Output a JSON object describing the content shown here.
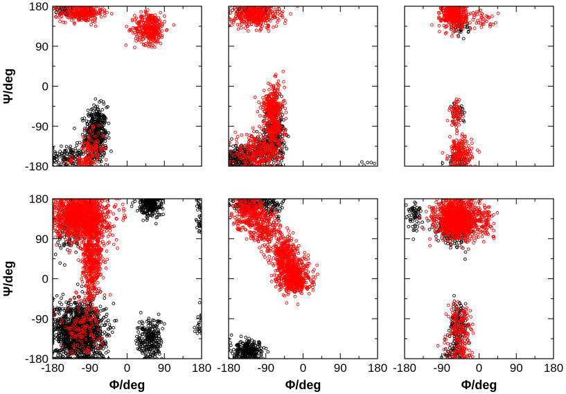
{
  "figure": {
    "xlabel": "Φ/deg",
    "ylabel": "Ψ/deg",
    "tick_labels": [
      "-180",
      "-90",
      "0",
      "90",
      "180"
    ]
  },
  "colors": {
    "series_a": "#000000",
    "series_b": "#ff0000",
    "axes": "#000000"
  },
  "chart_data": [
    {
      "type": "scatter",
      "panel": "top-left",
      "xlim": [
        -180,
        180
      ],
      "ylim": [
        -180,
        180
      ],
      "xticks": [
        -180,
        -90,
        0,
        90,
        180
      ],
      "yticks": [
        -180,
        -90,
        0,
        90,
        180
      ],
      "show_x_ticklabels": false,
      "show_y_ticklabels": true,
      "xlabel": "",
      "ylabel": "Ψ/deg",
      "series": [
        {
          "color": "#000000",
          "clusters": [
            {
              "cx": -150,
              "cy": 172,
              "sx": 15,
              "sy": 7,
              "n": 50
            },
            {
              "cx": -75,
              "cy": -110,
              "sx": 13,
              "sy": 32,
              "n": 450
            },
            {
              "cx": -150,
              "cy": -160,
              "sx": 18,
              "sy": 12,
              "n": 90
            },
            {
              "cx": -115,
              "cy": -150,
              "sx": 15,
              "sy": 15,
              "n": 40
            }
          ]
        },
        {
          "color": "#ff0000",
          "clusters": [
            {
              "cx": -110,
              "cy": 165,
              "sx": 25,
              "sy": 10,
              "n": 300
            },
            {
              "cx": 55,
              "cy": 130,
              "sx": 18,
              "sy": 18,
              "n": 350
            },
            {
              "cx": -85,
              "cy": -140,
              "sx": 15,
              "sy": 20,
              "n": 100
            },
            {
              "cx": -110,
              "cy": -170,
              "sx": 20,
              "sy": 6,
              "n": 50
            }
          ]
        }
      ]
    },
    {
      "type": "scatter",
      "panel": "top-middle",
      "xlim": [
        -180,
        180
      ],
      "ylim": [
        -180,
        180
      ],
      "xticks": [
        -180,
        -90,
        0,
        90,
        180
      ],
      "yticks": [
        -180,
        -90,
        0,
        90,
        180
      ],
      "show_x_ticklabels": false,
      "show_y_ticklabels": false,
      "xlabel": "",
      "ylabel": "",
      "series": [
        {
          "color": "#000000",
          "clusters": [
            {
              "cx": -120,
              "cy": 172,
              "sx": 25,
              "sy": 6,
              "n": 60
            },
            {
              "cx": -70,
              "cy": -110,
              "sx": 12,
              "sy": 35,
              "n": 300
            },
            {
              "cx": -150,
              "cy": -160,
              "sx": 20,
              "sy": 15,
              "n": 250
            },
            {
              "cx": -105,
              "cy": -145,
              "sx": 15,
              "sy": 18,
              "n": 80
            },
            {
              "cx": 150,
              "cy": -170,
              "sx": 15,
              "sy": 5,
              "n": 5
            }
          ]
        },
        {
          "color": "#ff0000",
          "clusters": [
            {
              "cx": -115,
              "cy": 160,
              "sx": 28,
              "sy": 14,
              "n": 400
            },
            {
              "cx": -70,
              "cy": -80,
              "sx": 12,
              "sy": 40,
              "n": 350
            },
            {
              "cx": -80,
              "cy": -45,
              "sx": 12,
              "sy": 12,
              "n": 100
            },
            {
              "cx": -115,
              "cy": -150,
              "sx": 25,
              "sy": 20,
              "n": 250
            }
          ]
        }
      ]
    },
    {
      "type": "scatter",
      "panel": "top-right",
      "xlim": [
        -180,
        180
      ],
      "ylim": [
        -180,
        180
      ],
      "xticks": [
        -180,
        -90,
        0,
        90,
        180
      ],
      "yticks": [
        -180,
        -90,
        0,
        90,
        180
      ],
      "show_x_ticklabels": false,
      "show_y_ticklabels": false,
      "xlabel": "",
      "ylabel": "",
      "series": [
        {
          "color": "#000000",
          "clusters": [
            {
              "cx": -45,
              "cy": 135,
              "sx": 10,
              "sy": 10,
              "n": 40
            },
            {
              "cx": -50,
              "cy": -60,
              "sx": 8,
              "sy": 12,
              "n": 30
            },
            {
              "cx": -55,
              "cy": -165,
              "sx": 12,
              "sy": 10,
              "n": 40
            }
          ]
        },
        {
          "color": "#ff0000",
          "clusters": [
            {
              "cx": -60,
              "cy": 160,
              "sx": 15,
              "sy": 15,
              "n": 400
            },
            {
              "cx": 10,
              "cy": 150,
              "sx": 20,
              "sy": 10,
              "n": 40
            },
            {
              "cx": -55,
              "cy": -60,
              "sx": 8,
              "sy": 14,
              "n": 60
            },
            {
              "cx": -45,
              "cy": -155,
              "sx": 14,
              "sy": 20,
              "n": 200
            }
          ]
        }
      ]
    },
    {
      "type": "scatter",
      "panel": "bottom-left",
      "xlim": [
        -180,
        180
      ],
      "ylim": [
        -180,
        180
      ],
      "xticks": [
        -180,
        -90,
        0,
        90,
        180
      ],
      "yticks": [
        -180,
        -90,
        0,
        90,
        180
      ],
      "show_x_ticklabels": true,
      "show_y_ticklabels": true,
      "xlabel": "Φ/deg",
      "ylabel": "Ψ/deg",
      "series": [
        {
          "color": "#000000",
          "clusters": [
            {
              "cx": -115,
              "cy": -120,
              "sx": 30,
              "sy": 35,
              "n": 1400
            },
            {
              "cx": 55,
              "cy": 165,
              "sx": 15,
              "sy": 12,
              "n": 250
            },
            {
              "cx": 55,
              "cy": -140,
              "sx": 15,
              "sy": 25,
              "n": 250
            },
            {
              "cx": -140,
              "cy": 100,
              "sx": 15,
              "sy": 25,
              "n": 80
            },
            {
              "cx": 175,
              "cy": 145,
              "sx": 6,
              "sy": 25,
              "n": 40
            },
            {
              "cx": 175,
              "cy": -110,
              "sx": 6,
              "sy": 20,
              "n": 20
            }
          ]
        },
        {
          "color": "#ff0000",
          "clusters": [
            {
              "cx": -110,
              "cy": 140,
              "sx": 32,
              "sy": 25,
              "n": 1400
            },
            {
              "cx": -85,
              "cy": 40,
              "sx": 12,
              "sy": 45,
              "n": 500
            },
            {
              "cx": -110,
              "cy": -110,
              "sx": 25,
              "sy": 30,
              "n": 120
            }
          ]
        }
      ]
    },
    {
      "type": "scatter",
      "panel": "bottom-middle",
      "xlim": [
        -180,
        180
      ],
      "ylim": [
        -180,
        180
      ],
      "xticks": [
        -180,
        -90,
        0,
        90,
        180
      ],
      "yticks": [
        -180,
        -90,
        0,
        90,
        180
      ],
      "show_x_ticklabels": true,
      "show_y_ticklabels": false,
      "xlabel": "Φ/deg",
      "ylabel": "",
      "series": [
        {
          "color": "#000000",
          "clusters": [
            {
              "cx": -125,
              "cy": 168,
              "sx": 25,
              "sy": 8,
              "n": 200
            },
            {
              "cx": -130,
              "cy": -165,
              "sx": 20,
              "sy": 12,
              "n": 250
            },
            {
              "cx": -70,
              "cy": 160,
              "sx": 10,
              "sy": 12,
              "n": 50
            }
          ]
        },
        {
          "color": "#ff0000",
          "clusters": [
            {
              "cx": -130,
              "cy": 150,
              "sx": 20,
              "sy": 20,
              "n": 300
            },
            {
              "cx": -90,
              "cy": 110,
              "sx": 18,
              "sy": 20,
              "n": 200
            },
            {
              "cx": -45,
              "cy": 60,
              "sx": 15,
              "sy": 18,
              "n": 250
            },
            {
              "cx": -25,
              "cy": 20,
              "sx": 20,
              "sy": 15,
              "n": 350
            },
            {
              "cx": -20,
              "cy": -10,
              "sx": 18,
              "sy": 12,
              "n": 250
            }
          ]
        }
      ]
    },
    {
      "type": "scatter",
      "panel": "bottom-right",
      "xlim": [
        -180,
        180
      ],
      "ylim": [
        -180,
        180
      ],
      "xticks": [
        -180,
        -90,
        0,
        90,
        180
      ],
      "yticks": [
        -180,
        -90,
        0,
        90,
        180
      ],
      "show_x_ticklabels": true,
      "show_y_ticklabels": false,
      "xlabel": "Φ/deg",
      "ylabel": "",
      "series": [
        {
          "color": "#000000",
          "clusters": [
            {
              "cx": -60,
              "cy": 110,
              "sx": 20,
              "sy": 18,
              "n": 200
            },
            {
              "cx": -155,
              "cy": 140,
              "sx": 12,
              "sy": 18,
              "n": 60
            },
            {
              "cx": -50,
              "cy": -110,
              "sx": 10,
              "sy": 30,
              "n": 150
            },
            {
              "cx": -60,
              "cy": -165,
              "sx": 12,
              "sy": 10,
              "n": 40
            }
          ]
        },
        {
          "color": "#ff0000",
          "clusters": [
            {
              "cx": -55,
              "cy": 135,
              "sx": 25,
              "sy": 22,
              "n": 1100
            },
            {
              "cx": 10,
              "cy": 130,
              "sx": 15,
              "sy": 18,
              "n": 100
            },
            {
              "cx": -45,
              "cy": -110,
              "sx": 14,
              "sy": 30,
              "n": 150
            },
            {
              "cx": -45,
              "cy": -165,
              "sx": 15,
              "sy": 10,
              "n": 60
            }
          ]
        }
      ]
    }
  ]
}
